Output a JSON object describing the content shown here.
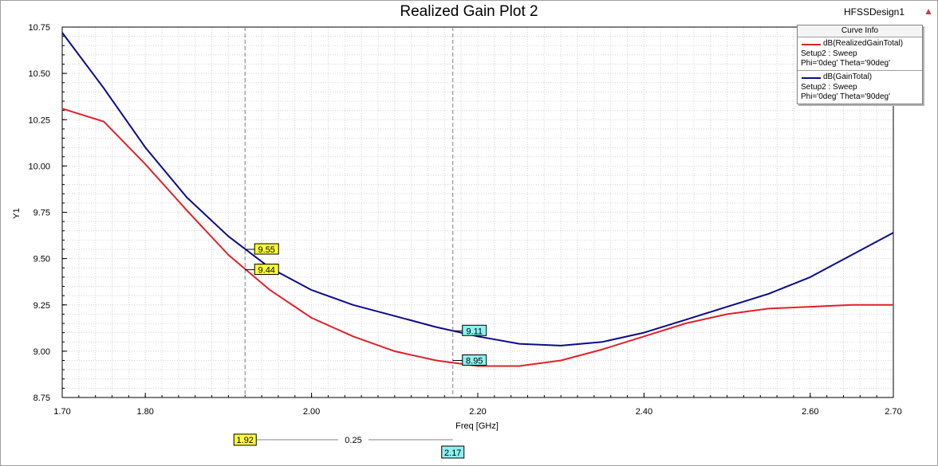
{
  "window": {
    "title": "Realized Gain Plot 2",
    "design": "HFSSDesign1"
  },
  "legend": {
    "header": "Curve Info",
    "entries": [
      {
        "name": "dB(RealizedGainTotal)",
        "setup": "Setup2 : Sweep",
        "params": "Phi='0deg' Theta='90deg'",
        "color": "#e0202a"
      },
      {
        "name": "dB(GainTotal)",
        "setup": "Setup2 : Sweep",
        "params": "Phi='0deg' Theta='90deg'",
        "color": "#0a0a8a"
      }
    ]
  },
  "markers": {
    "m1": {
      "x_label": "1.92",
      "colors": "#ffff33"
    },
    "m2": {
      "x_label": "2.17",
      "colors": "#8ff0f0"
    },
    "delta_label": "0.25",
    "labels": [
      {
        "text": "9.55",
        "series": 1,
        "x": 1.92,
        "y": 9.55,
        "bg": "#ffff33"
      },
      {
        "text": "9.44",
        "series": 0,
        "x": 1.92,
        "y": 9.44,
        "bg": "#ffff33"
      },
      {
        "text": "9.11",
        "series": 1,
        "x": 2.17,
        "y": 9.11,
        "bg": "#8ff0f0"
      },
      {
        "text": "8.95",
        "series": 0,
        "x": 2.17,
        "y": 8.95,
        "bg": "#8ff0f0"
      }
    ]
  },
  "chart_data": {
    "type": "line",
    "title": "Realized Gain Plot 2",
    "xlabel": "Freq [GHz]",
    "ylabel": "Y1",
    "xlim": [
      1.7,
      2.7
    ],
    "ylim": [
      8.75,
      10.75
    ],
    "xticks": [
      "1.70",
      "1.80",
      "2.00",
      "2.20",
      "2.40",
      "2.60",
      "2.70"
    ],
    "xtick_values": [
      1.7,
      1.8,
      2.0,
      2.2,
      2.4,
      2.6,
      2.7
    ],
    "yticks": [
      "8.75",
      "9.00",
      "9.25",
      "9.50",
      "9.75",
      "10.00",
      "10.25",
      "10.50",
      "10.75"
    ],
    "ytick_values": [
      8.75,
      9.0,
      9.25,
      9.5,
      9.75,
      10.0,
      10.25,
      10.5,
      10.75
    ],
    "grid": true,
    "legend_position": "top-right",
    "series": [
      {
        "name": "dB(RealizedGainTotal)",
        "color": "#e0202a",
        "x": [
          1.7,
          1.75,
          1.8,
          1.85,
          1.9,
          1.95,
          2.0,
          2.05,
          2.1,
          2.15,
          2.2,
          2.25,
          2.3,
          2.35,
          2.4,
          2.45,
          2.5,
          2.55,
          2.6,
          2.65,
          2.7
        ],
        "values": [
          10.31,
          10.24,
          10.01,
          9.76,
          9.52,
          9.33,
          9.18,
          9.08,
          9.0,
          8.95,
          8.92,
          8.92,
          8.95,
          9.01,
          9.08,
          9.15,
          9.2,
          9.23,
          9.24,
          9.25,
          9.25
        ]
      },
      {
        "name": "dB(GainTotal)",
        "color": "#0a0a8a",
        "x": [
          1.7,
          1.75,
          1.8,
          1.85,
          1.9,
          1.95,
          2.0,
          2.05,
          2.1,
          2.15,
          2.2,
          2.25,
          2.3,
          2.35,
          2.4,
          2.45,
          2.5,
          2.55,
          2.6,
          2.65,
          2.7
        ],
        "values": [
          10.72,
          10.42,
          10.1,
          9.83,
          9.62,
          9.45,
          9.33,
          9.25,
          9.19,
          9.13,
          9.08,
          9.04,
          9.03,
          9.05,
          9.1,
          9.17,
          9.24,
          9.31,
          9.4,
          9.52,
          9.64
        ]
      }
    ]
  }
}
